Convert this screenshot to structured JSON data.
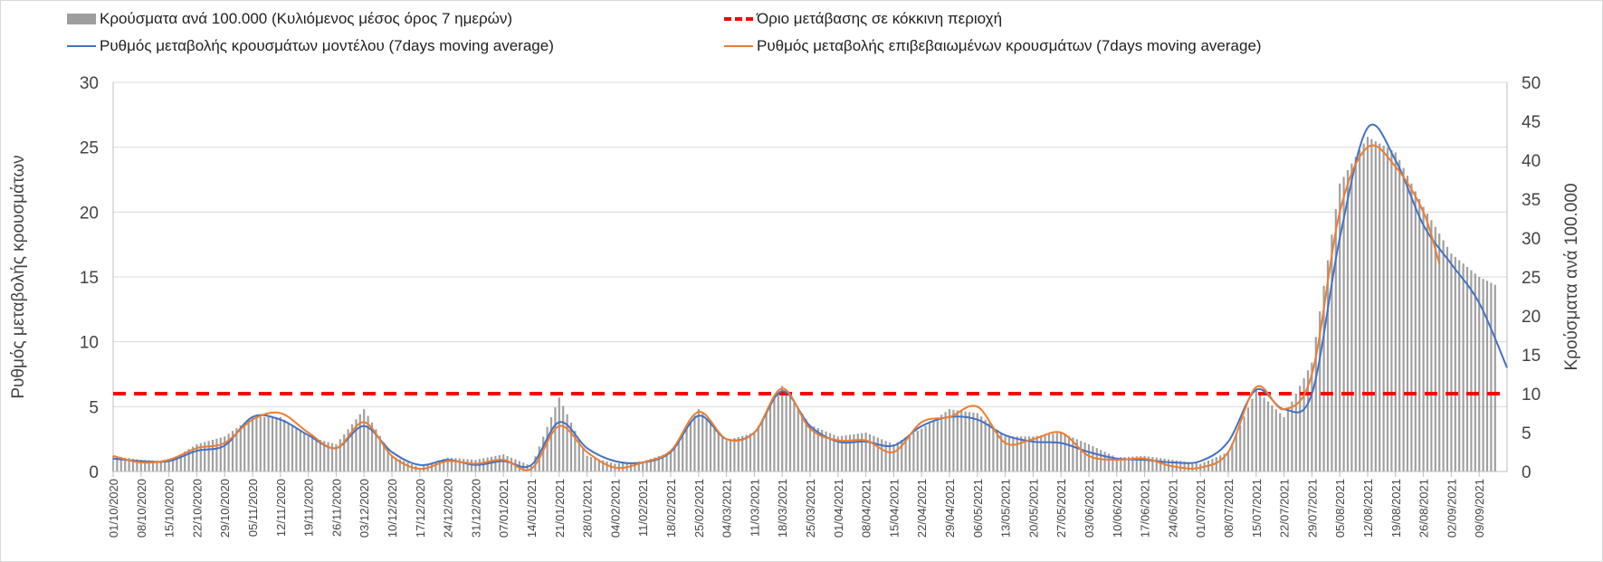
{
  "chart_data": {
    "type": "bar+line",
    "legend": [
      {
        "key": "bars",
        "label": "Κρούσματα ανά 100.000 (Κυλιόμενος μέσος όρος 7 ημερών)",
        "color": "#9e9e9e"
      },
      {
        "key": "threshold",
        "label": "Όριο μετάβασης σε κόκκινη περιοχή",
        "color": "#ff0000"
      },
      {
        "key": "model",
        "label": "Ρυθμός μεταβολής κρουσμάτων μοντέλου (7days moving average)",
        "color": "#4472c4"
      },
      {
        "key": "confirmed",
        "label": "Ρυθμός μεταβολής επιβεβαιωμένων κρουσμάτων (7days moving average)",
        "color": "#ed7d31"
      }
    ],
    "ylabel_left": "Ρυθμός μεταβολής κρουσμάτων",
    "ylabel_right": "Κρούσματα ανά 100.000",
    "ylim_left": [
      0,
      30
    ],
    "yticks_left": [
      0,
      5,
      10,
      15,
      20,
      25,
      30
    ],
    "ylim_right": [
      0,
      50
    ],
    "yticks_right": [
      0,
      5,
      10,
      15,
      20,
      25,
      30,
      35,
      40,
      45,
      50
    ],
    "x_start": "01/10/2020",
    "x_end": "16/09/2021",
    "x_tick_labels": [
      "01/10/2020",
      "08/10/2020",
      "15/10/2020",
      "22/10/2020",
      "29/10/2020",
      "05/11/2020",
      "12/11/2020",
      "19/11/2020",
      "26/11/2020",
      "03/12/2020",
      "10/12/2020",
      "17/12/2020",
      "24/12/2020",
      "31/12/2020",
      "07/01/2021",
      "14/01/2021",
      "21/01/2021",
      "28/01/2021",
      "04/02/2021",
      "11/02/2021",
      "18/02/2021",
      "25/02/2021",
      "04/03/2021",
      "11/03/2021",
      "18/03/2021",
      "25/03/2021",
      "01/04/2021",
      "08/04/2021",
      "15/04/2021",
      "22/04/2021",
      "29/04/2021",
      "06/05/2021",
      "13/05/2021",
      "20/05/2021",
      "27/05/2021",
      "03/06/2021",
      "10/06/2021",
      "17/06/2021",
      "24/06/2021",
      "01/07/2021",
      "08/07/2021",
      "15/07/2021",
      "22/07/2021",
      "29/07/2021",
      "05/08/2021",
      "12/08/2021",
      "19/08/2021",
      "26/08/2021",
      "02/09/2021",
      "09/09/2021"
    ],
    "threshold_left": 6,
    "bars_per_100k": {
      "x": [
        "01/10/2020",
        "08/10/2020",
        "15/10/2020",
        "22/10/2020",
        "29/10/2020",
        "05/11/2020",
        "12/11/2020",
        "19/11/2020",
        "26/11/2020",
        "03/12/2020",
        "10/12/2020",
        "17/12/2020",
        "24/12/2020",
        "31/12/2020",
        "07/01/2021",
        "14/01/2021",
        "21/01/2021",
        "28/01/2021",
        "04/02/2021",
        "11/02/2021",
        "18/02/2021",
        "25/02/2021",
        "04/03/2021",
        "11/03/2021",
        "18/03/2021",
        "25/03/2021",
        "01/04/2021",
        "08/04/2021",
        "15/04/2021",
        "22/04/2021",
        "29/04/2021",
        "06/05/2021",
        "13/05/2021",
        "20/05/2021",
        "27/05/2021",
        "03/06/2021",
        "10/06/2021",
        "17/06/2021",
        "24/06/2021",
        "01/07/2021",
        "08/07/2021",
        "15/07/2021",
        "22/07/2021",
        "29/07/2021",
        "05/08/2021",
        "12/08/2021",
        "19/08/2021",
        "26/08/2021",
        "02/09/2021",
        "09/09/2021",
        "13/09/2021"
      ],
      "values": [
        2.0,
        1.5,
        1.3,
        3.5,
        4.5,
        7.0,
        7.0,
        4.5,
        3.5,
        8.0,
        2.0,
        0.5,
        1.8,
        1.5,
        2.2,
        0.7,
        9.5,
        2.0,
        1.0,
        1.3,
        2.5,
        8.0,
        4.0,
        5.0,
        11.0,
        6.0,
        4.5,
        5.0,
        3.5,
        5.5,
        8.0,
        7.5,
        4.5,
        4.5,
        5.0,
        3.5,
        1.8,
        2.0,
        1.5,
        1.0,
        2.5,
        10.5,
        7.0,
        14.0,
        37.0,
        43.0,
        41.0,
        34.0,
        28.0,
        25.0,
        24.0
      ]
    },
    "model_rate": {
      "x": [
        "01/10/2020",
        "08/10/2020",
        "15/10/2020",
        "22/10/2020",
        "29/10/2020",
        "05/11/2020",
        "12/11/2020",
        "19/11/2020",
        "26/11/2020",
        "03/12/2020",
        "10/12/2020",
        "17/12/2020",
        "24/12/2020",
        "31/12/2020",
        "07/01/2021",
        "14/01/2021",
        "21/01/2021",
        "28/01/2021",
        "04/02/2021",
        "11/02/2021",
        "18/02/2021",
        "25/02/2021",
        "04/03/2021",
        "11/03/2021",
        "18/03/2021",
        "25/03/2021",
        "01/04/2021",
        "08/04/2021",
        "15/04/2021",
        "22/04/2021",
        "29/04/2021",
        "06/05/2021",
        "13/05/2021",
        "20/05/2021",
        "27/05/2021",
        "03/06/2021",
        "10/06/2021",
        "17/06/2021",
        "24/06/2021",
        "01/07/2021",
        "08/07/2021",
        "15/07/2021",
        "22/07/2021",
        "29/07/2021",
        "05/08/2021",
        "12/08/2021",
        "19/08/2021",
        "26/08/2021",
        "02/09/2021",
        "09/09/2021",
        "16/09/2021"
      ],
      "values": [
        1.0,
        0.8,
        0.8,
        1.6,
        2.0,
        4.2,
        4.0,
        2.8,
        1.8,
        3.5,
        1.5,
        0.5,
        0.9,
        0.5,
        0.8,
        0.5,
        3.8,
        1.8,
        0.8,
        0.7,
        1.5,
        4.3,
        2.5,
        3.0,
        6.2,
        3.5,
        2.3,
        2.3,
        2.0,
        3.5,
        4.2,
        4.0,
        2.8,
        2.3,
        2.2,
        1.5,
        1.0,
        0.9,
        0.7,
        0.8,
        2.3,
        6.3,
        4.8,
        6.0,
        18.0,
        26.5,
        24.0,
        19.0,
        16.0,
        13.0,
        8.0
      ]
    },
    "confirmed_rate": {
      "x": [
        "01/10/2020",
        "08/10/2020",
        "15/10/2020",
        "22/10/2020",
        "29/10/2020",
        "05/11/2020",
        "12/11/2020",
        "19/11/2020",
        "26/11/2020",
        "03/12/2020",
        "10/12/2020",
        "17/12/2020",
        "24/12/2020",
        "31/12/2020",
        "07/01/2021",
        "14/01/2021",
        "21/01/2021",
        "28/01/2021",
        "04/02/2021",
        "11/02/2021",
        "18/02/2021",
        "25/02/2021",
        "04/03/2021",
        "11/03/2021",
        "18/03/2021",
        "25/03/2021",
        "01/04/2021",
        "08/04/2021",
        "15/04/2021",
        "22/04/2021",
        "29/04/2021",
        "06/05/2021",
        "13/05/2021",
        "20/05/2021",
        "27/05/2021",
        "03/06/2021",
        "10/06/2021",
        "17/06/2021",
        "24/06/2021",
        "01/07/2021",
        "08/07/2021",
        "15/07/2021",
        "22/07/2021",
        "29/07/2021",
        "05/08/2021",
        "12/08/2021",
        "19/08/2021",
        "26/08/2021",
        "30/08/2021"
      ],
      "values": [
        1.2,
        0.7,
        0.9,
        1.8,
        2.2,
        4.0,
        4.5,
        3.0,
        1.8,
        3.8,
        1.2,
        0.2,
        0.8,
        0.6,
        0.9,
        0.2,
        3.5,
        1.5,
        0.3,
        0.7,
        1.6,
        4.6,
        2.5,
        3.0,
        6.4,
        3.3,
        2.4,
        2.4,
        1.5,
        3.8,
        4.2,
        5.0,
        2.2,
        2.5,
        3.0,
        1.2,
        0.9,
        1.0,
        0.4,
        0.3,
        1.5,
        6.5,
        4.8,
        7.5,
        20.0,
        25.0,
        23.5,
        20.0,
        16.0
      ]
    }
  }
}
